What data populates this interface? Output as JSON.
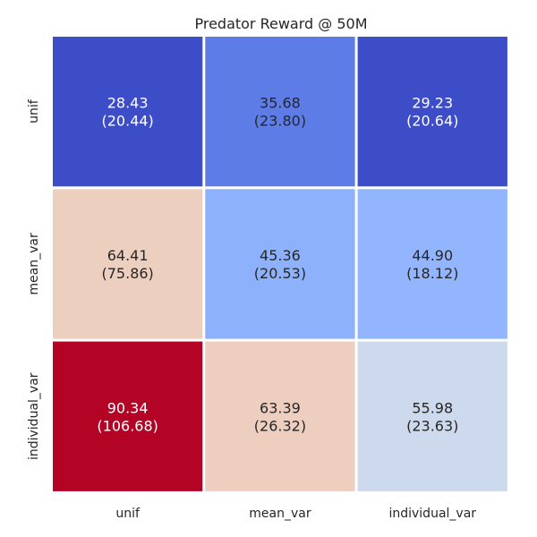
{
  "chart_data": {
    "type": "heatmap",
    "title": "Predator Reward @ 50M",
    "xlabel": "",
    "ylabel": "",
    "x_categories": [
      "unif",
      "mean_var",
      "individual_var"
    ],
    "y_categories": [
      "unif",
      "mean_var",
      "individual_var"
    ],
    "values": [
      [
        28.43,
        35.68,
        29.23
      ],
      [
        64.41,
        45.36,
        44.9
      ],
      [
        90.34,
        63.39,
        55.98
      ]
    ],
    "std": [
      [
        20.44,
        23.8,
        20.64
      ],
      [
        75.86,
        20.53,
        18.12
      ],
      [
        106.68,
        26.32,
        23.63
      ]
    ],
    "cell_labels": [
      [
        [
          "28.43",
          "(20.44)"
        ],
        [
          "35.68",
          "(23.80)"
        ],
        [
          "29.23",
          "(20.64)"
        ]
      ],
      [
        [
          "64.41",
          "(75.86)"
        ],
        [
          "45.36",
          "(20.53)"
        ],
        [
          "44.90",
          "(18.12)"
        ]
      ],
      [
        [
          "90.34",
          "(106.68)"
        ],
        [
          "63.39",
          "(26.32)"
        ],
        [
          "55.98",
          "(23.63)"
        ]
      ]
    ],
    "colormap": "coolwarm",
    "cell_colors": [
      [
        "#3d4dc8",
        "#5d7ce6",
        "#3d4dc8"
      ],
      [
        "#edcfbf",
        "#8eb1fb",
        "#93b5fe"
      ],
      [
        "#b40426",
        "#edcebf",
        "#cdd9ec"
      ]
    ],
    "grid": false,
    "colorbar": false
  }
}
